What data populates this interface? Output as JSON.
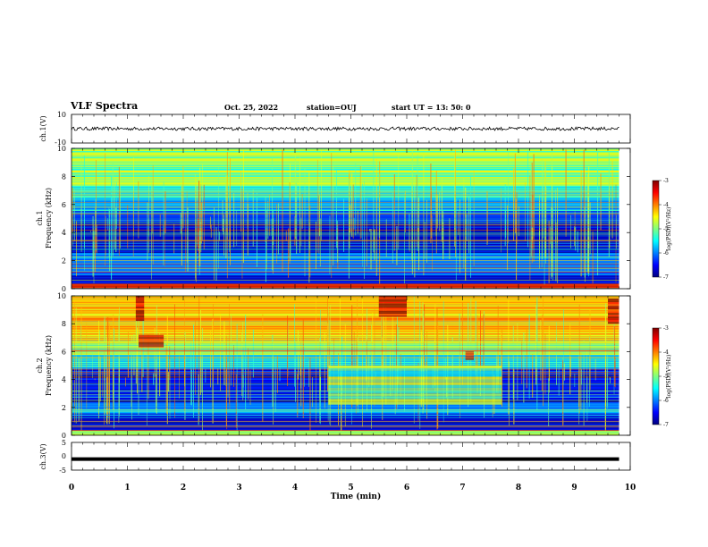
{
  "header": {
    "title": "VLF Spectra",
    "date": "Oct. 25, 2022",
    "station_label": "station=",
    "station": "OUJ",
    "start_label": "start UT =",
    "start_time": "13: 50: 0"
  },
  "chart_data": [
    {
      "id": "ch1-waveform",
      "type": "line",
      "ylabel": "ch.1(V)",
      "ylim": [
        -10,
        10
      ],
      "yticks": [
        "10",
        "-10"
      ],
      "xlim": [
        0,
        10
      ],
      "trace": {
        "baseline": 0,
        "amplitude": 1.2,
        "x_end": 9.8
      }
    },
    {
      "id": "ch1-spectrogram",
      "type": "heatmap",
      "ylabel_line1": "ch.1",
      "ylabel_line2": "Frequency (kHz)",
      "ylim": [
        0,
        10
      ],
      "yticks": [
        "0",
        "2",
        "4",
        "6",
        "8",
        "10"
      ],
      "xlim": [
        0,
        10
      ],
      "x_end": 9.8,
      "colorbar": {
        "label": "log(PSD)(V²/Hz)",
        "range": [
          -7,
          -3
        ],
        "ticks": [
          "-3",
          "-4",
          "-5",
          "-6",
          "-7"
        ]
      },
      "bands": [
        {
          "from": 0,
          "to": 0.4,
          "level": -3.6
        },
        {
          "from": 0.4,
          "to": 1.0,
          "level": -6.7
        },
        {
          "from": 1.0,
          "to": 2.6,
          "level": -6.0
        },
        {
          "from": 2.6,
          "to": 3.3,
          "level": -6.6
        },
        {
          "from": 3.3,
          "to": 4.8,
          "level": -6.8
        },
        {
          "from": 4.8,
          "to": 5.6,
          "level": -6.3
        },
        {
          "from": 5.6,
          "to": 6.5,
          "level": -5.8
        },
        {
          "from": 6.5,
          "to": 7.4,
          "level": -5.3
        },
        {
          "from": 7.4,
          "to": 10,
          "level": -5.0
        }
      ]
    },
    {
      "id": "ch2-spectrogram",
      "type": "heatmap",
      "ylabel_line1": "ch.2",
      "ylabel_line2": "Frequency (kHz)",
      "ylim": [
        0,
        10
      ],
      "yticks": [
        "0",
        "2",
        "4",
        "6",
        "8",
        "10"
      ],
      "xlim": [
        0,
        10
      ],
      "x_end": 9.8,
      "colorbar": {
        "label": "log(PSD)(V²/Hz)",
        "range": [
          -7,
          -3
        ],
        "ticks": [
          "-3",
          "-4",
          "-5",
          "-6",
          "-7"
        ]
      },
      "bands": [
        {
          "from": 0,
          "to": 0.4,
          "level": -4.8
        },
        {
          "from": 0.4,
          "to": 1.6,
          "level": -6.6
        },
        {
          "from": 1.6,
          "to": 2.4,
          "level": -6.0
        },
        {
          "from": 2.4,
          "to": 4.8,
          "level": -6.5
        },
        {
          "from": 4.8,
          "to": 5.8,
          "level": -5.6
        },
        {
          "from": 5.8,
          "to": 6.8,
          "level": -4.9
        },
        {
          "from": 6.8,
          "to": 8.2,
          "level": -4.4
        },
        {
          "from": 8.2,
          "to": 10,
          "level": -4.2
        }
      ],
      "events": [
        {
          "t0": 1.15,
          "t1": 1.3,
          "f0": 8.2,
          "f1": 10,
          "level": -3.2
        },
        {
          "t0": 1.2,
          "t1": 1.65,
          "f0": 6.3,
          "f1": 7.2,
          "level": -3.3
        },
        {
          "t0": 4.6,
          "t1": 7.7,
          "f0": 2.2,
          "f1": 5.0,
          "level": -5.0
        },
        {
          "t0": 5.5,
          "t1": 6.0,
          "f0": 8.5,
          "f1": 10,
          "level": -3.1
        },
        {
          "t0": 7.05,
          "t1": 7.2,
          "f0": 5.4,
          "f1": 6.0,
          "level": -3.5
        },
        {
          "t0": 9.6,
          "t1": 9.8,
          "f0": 8.0,
          "f1": 9.8,
          "level": -3.3
        }
      ]
    },
    {
      "id": "ch3-waveform",
      "type": "line",
      "ylabel": "ch.3(V)",
      "ylim": [
        -5,
        5
      ],
      "yticks": [
        "5",
        "0",
        "-5"
      ],
      "xlim": [
        0,
        10
      ],
      "xlabel": "Time (min)",
      "xticks": [
        "0",
        "1",
        "2",
        "3",
        "4",
        "5",
        "6",
        "7",
        "8",
        "9",
        "10"
      ],
      "trace": {
        "baseline": -1,
        "amplitude": 0.3,
        "x_end": 9.8
      }
    }
  ]
}
